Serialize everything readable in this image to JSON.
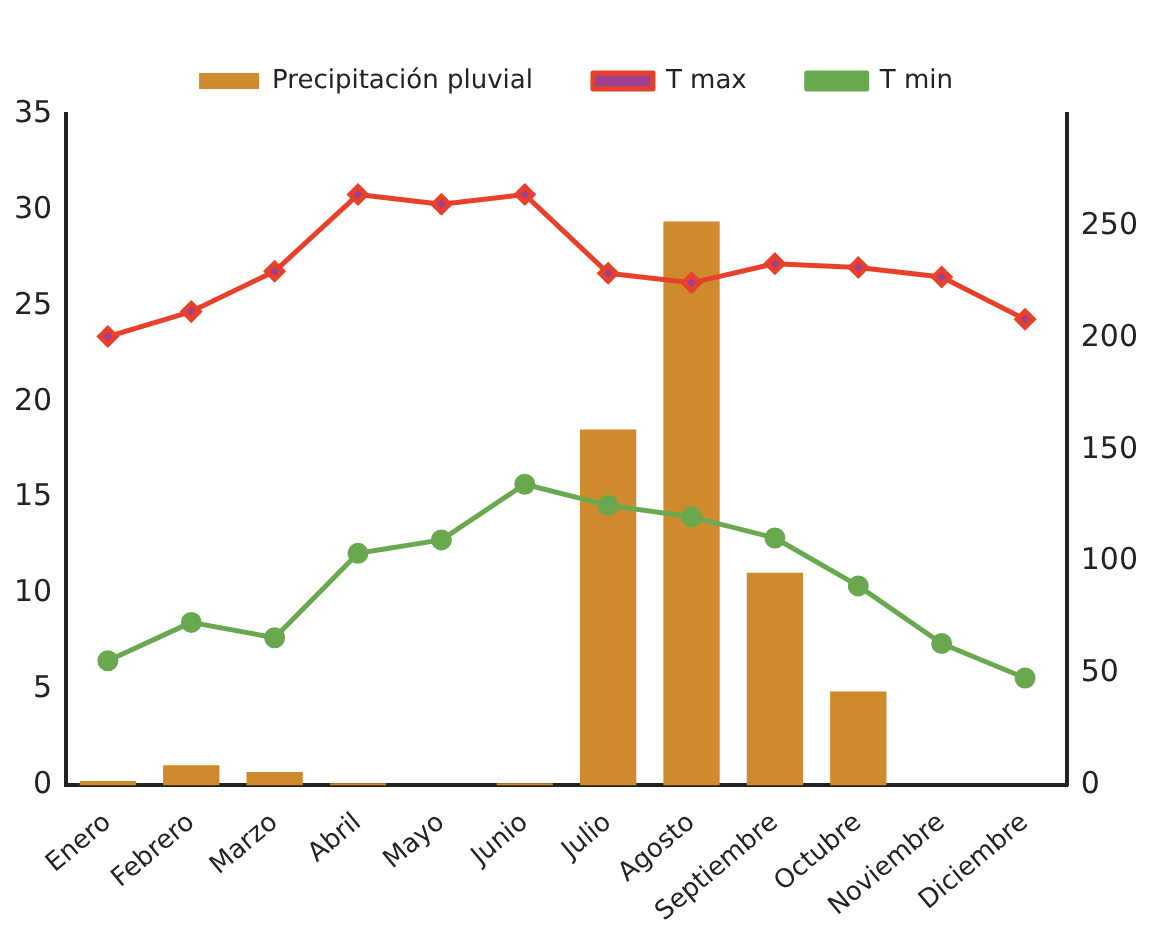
{
  "chart_data": {
    "type": "bar",
    "categories": [
      "Enero",
      "Febrero",
      "Marzo",
      "Abril",
      "Mayo",
      "Junio",
      "Julio",
      "Agosto",
      "Septiembre",
      "Octubre",
      "Noviembre",
      "Diciembre"
    ],
    "series": [
      {
        "name": "Precipitación pluvial",
        "axis": "y2",
        "color": "#d08a2e",
        "values": [
          2,
          9,
          6,
          1,
          0,
          1,
          159,
          252,
          95,
          42,
          0,
          0
        ]
      },
      {
        "name": "T max",
        "type": "line",
        "color": "#e8402a",
        "marker": "diamond",
        "values": [
          23.4,
          24.7,
          26.8,
          30.8,
          30.3,
          30.8,
          26.7,
          26.2,
          27.2,
          27.0,
          26.5,
          24.3
        ]
      },
      {
        "name": "T min",
        "type": "line",
        "color": "#6aa84f",
        "marker": "circle",
        "values": [
          6.5,
          8.5,
          7.7,
          12.1,
          12.8,
          15.7,
          14.6,
          14.0,
          12.9,
          10.4,
          7.4,
          5.6
        ]
      }
    ],
    "ylim": [
      0,
      35
    ],
    "yticks": [
      0,
      5,
      10,
      15,
      20,
      25,
      30,
      35
    ],
    "y2lim": [
      0,
      300
    ],
    "y2ticks": [
      0,
      50,
      100,
      150,
      200,
      250
    ],
    "grid": false,
    "legend": "top"
  }
}
